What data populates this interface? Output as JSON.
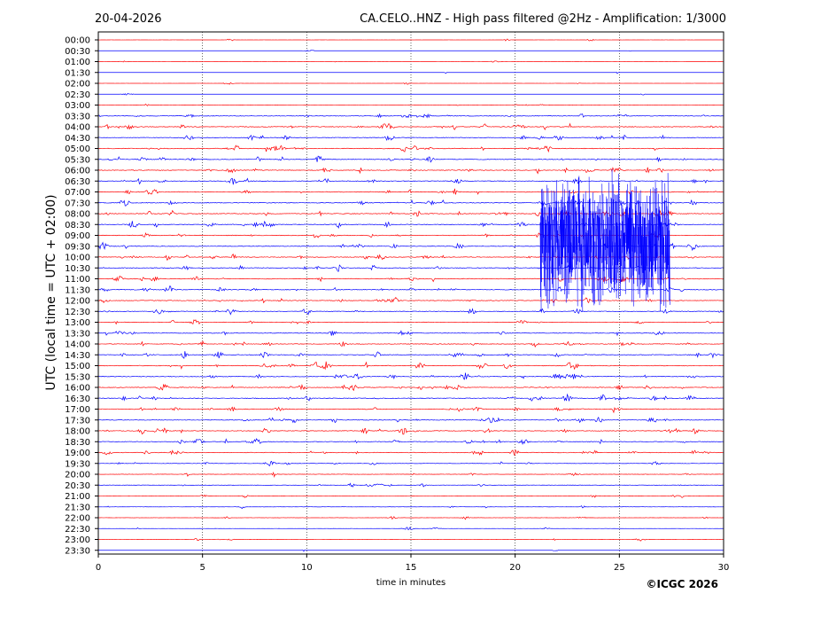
{
  "header": {
    "date": "20-04-2026",
    "title": "CA.CELO..HNZ - High pass filtered @2Hz - Amplification: 1/3000"
  },
  "copyright": "©ICGC 2026",
  "chart_data": {
    "type": "seismogram",
    "xlabel": "time in minutes",
    "ylabel": "UTC (local time = UTC + 02:00)",
    "xlim": [
      0,
      30
    ],
    "x_ticks": [
      "0",
      "5",
      "10",
      "15",
      "20",
      "25",
      "30"
    ],
    "grid": "vertical dotted lines at 5-minute intervals",
    "row_labels": [
      "00:00",
      "00:30",
      "01:00",
      "01:30",
      "02:00",
      "02:30",
      "03:00",
      "03:30",
      "04:00",
      "04:30",
      "05:00",
      "05:30",
      "06:00",
      "06:30",
      "07:00",
      "07:30",
      "08:00",
      "08:30",
      "09:00",
      "09:30",
      "10:00",
      "10:30",
      "11:00",
      "11:30",
      "12:00",
      "12:30",
      "13:00",
      "13:30",
      "14:00",
      "14:30",
      "15:00",
      "15:30",
      "16:00",
      "16:30",
      "17:00",
      "17:30",
      "18:00",
      "18:30",
      "19:00",
      "19:30",
      "20:00",
      "20:30",
      "21:00",
      "21:30",
      "22:00",
      "22:30",
      "23:00",
      "23:30"
    ],
    "trace_colors": [
      "#ff0000",
      "#0000ff"
    ],
    "trace_color_pattern": "alternating by row; row 00:00 red, 00:30 blue",
    "activity_level": [
      0.15,
      0.1,
      0.15,
      0.1,
      0.15,
      0.1,
      0.3,
      0.9,
      1.0,
      0.9,
      1.0,
      1.0,
      1.0,
      1.0,
      1.0,
      1.0,
      1.0,
      1.0,
      0.95,
      0.9,
      0.9,
      1.0,
      1.0,
      1.0,
      0.9,
      0.9,
      0.8,
      0.7,
      0.9,
      1.0,
      1.0,
      1.0,
      1.0,
      1.0,
      1.0,
      0.9,
      0.9,
      0.9,
      0.9,
      0.6,
      0.5,
      0.5,
      0.3,
      0.3,
      0.3,
      0.25,
      0.3,
      0.1
    ],
    "large_event": {
      "start_minute": 21.2,
      "end_minute": 27.4,
      "first_row": "05:30",
      "last_row": "13:00",
      "color": "#0000ff"
    }
  }
}
